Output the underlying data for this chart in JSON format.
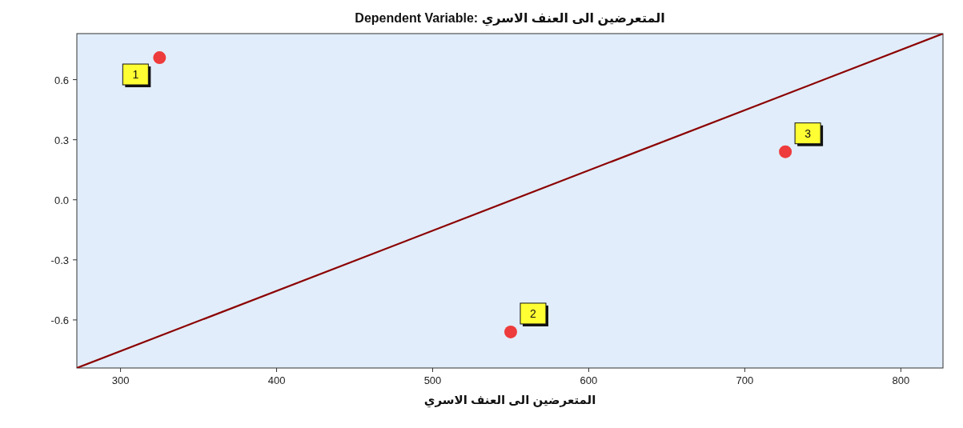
{
  "chart_data": {
    "type": "scatter",
    "title": "Dependent Variable: المتعرضين الى العنف الاسري",
    "xlabel": "المتعرضين الى العنف الاسري",
    "xlim": [
      272,
      827
    ],
    "ylim": [
      -0.84,
      0.83
    ],
    "xticks": [
      300,
      400,
      500,
      600,
      700,
      800
    ],
    "yticks": [
      -0.6,
      -0.3,
      {
        "value": 0,
        "label": "0.0"
      },
      0.3,
      0.6
    ],
    "grid": false,
    "series": [
      {
        "marker": "circle",
        "color": "#ee3b3b",
        "x": [
          325,
          550,
          726
        ],
        "values": [
          0.71,
          -0.66,
          0.24
        ]
      },
      {
        "type": "line",
        "color": "#8b0000",
        "x": [
          272,
          827
        ],
        "values": [
          -0.84,
          0.83
        ]
      }
    ],
    "annotations": [
      {
        "text": "1",
        "x": 325,
        "y": 0.71
      },
      {
        "text": "2",
        "x": 550,
        "y": -0.66
      },
      {
        "text": "3",
        "x": 726,
        "y": 0.24
      }
    ]
  }
}
